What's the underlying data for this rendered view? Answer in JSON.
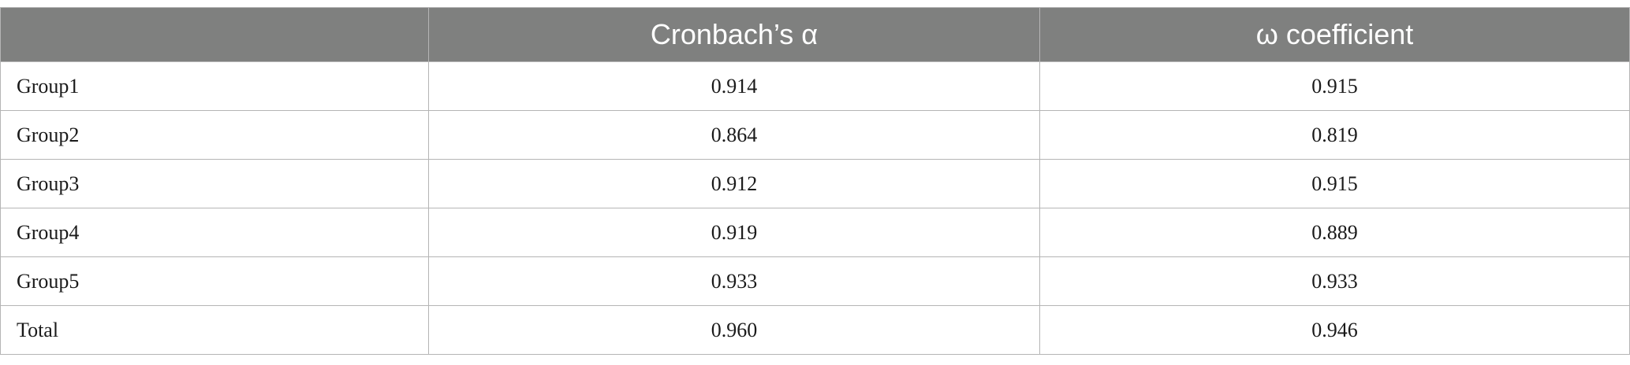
{
  "table": {
    "header": [
      "Cronbach’s α",
      "ω coefficient"
    ],
    "rows": [
      [
        "Group1",
        "0.914",
        "0.915"
      ],
      [
        "Group2",
        "0.864",
        "0.819"
      ],
      [
        "Group3",
        "0.912",
        "0.915"
      ],
      [
        "Group4",
        "0.919",
        "0.889"
      ],
      [
        "Group5",
        "0.933",
        "0.933"
      ],
      [
        "Total",
        "0.960",
        "0.946"
      ]
    ]
  }
}
